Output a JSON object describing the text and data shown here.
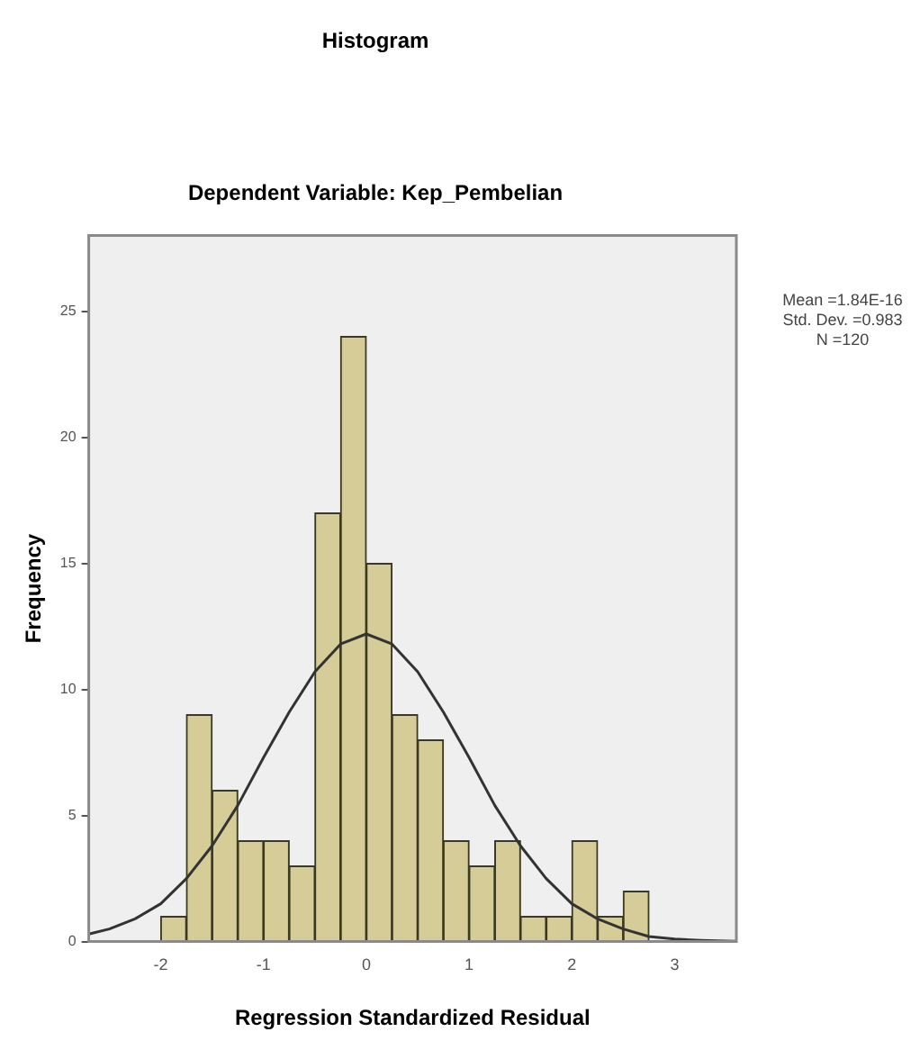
{
  "chart_data": {
    "type": "histogram",
    "title": "Histogram",
    "subtitle": "Dependent Variable: Kep_Pembelian",
    "xlabel": "Regression Standardized Residual",
    "ylabel": "Frequency",
    "bins": [
      -2,
      -1.75,
      -1.5,
      -1.25,
      -1,
      -0.75,
      -0.5,
      -0.25,
      0,
      0.25,
      0.5,
      0.75,
      1,
      1.25,
      1.5,
      1.75,
      2,
      2.25,
      2.5,
      2.75
    ],
    "values": [
      1,
      9,
      6,
      4,
      4,
      3,
      17,
      24,
      15,
      9,
      8,
      4,
      3,
      4,
      1,
      1,
      4,
      1,
      2
    ],
    "color": "#d5cc98",
    "series": [
      {
        "type": "line",
        "color": "#333333",
        "x": [
          -2.7,
          -2.5,
          -2.25,
          -2,
          -1.75,
          -1.5,
          -1.25,
          -1,
          -0.75,
          -0.5,
          -0.25,
          0,
          0.25,
          0.5,
          0.75,
          1,
          1.25,
          1.5,
          1.75,
          2,
          2.25,
          2.5,
          2.75,
          3,
          3.25,
          3.5,
          3.6
        ],
        "values": [
          0.3,
          0.5,
          0.9,
          1.5,
          2.5,
          3.8,
          5.4,
          7.3,
          9.1,
          10.7,
          11.8,
          12.2,
          11.8,
          10.7,
          9.1,
          7.3,
          5.4,
          3.8,
          2.5,
          1.5,
          0.9,
          0.5,
          0.2,
          0.1,
          0.05,
          0.02,
          0.01
        ]
      }
    ],
    "xlim": [
      -2.7,
      3.6
    ],
    "ylim": [
      0,
      28
    ],
    "xticks": [
      -2,
      -1,
      0,
      1,
      2,
      3
    ],
    "yticks": [
      0,
      5,
      10,
      15,
      20,
      25
    ],
    "grid": false,
    "legend": false,
    "annotations": [
      "Mean =1.84E-16",
      "Std. Dev. =0.983",
      "N =120"
    ]
  }
}
